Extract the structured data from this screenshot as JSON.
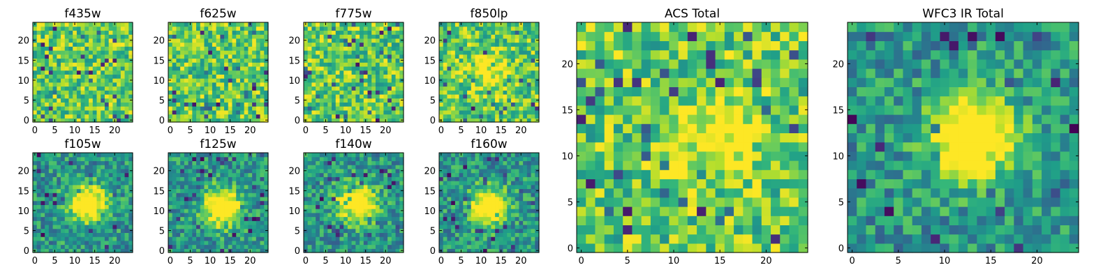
{
  "figure": {
    "panels": [
      {
        "title": "f435w",
        "x_ticks": [
          "0",
          "5",
          "10",
          "15",
          "20"
        ],
        "y_ticks": [
          "0",
          "5",
          "10",
          "15",
          "20"
        ]
      },
      {
        "title": "f625w",
        "x_ticks": [
          "0",
          "5",
          "10",
          "15",
          "20"
        ],
        "y_ticks": [
          "0",
          "5",
          "10",
          "15",
          "20"
        ]
      },
      {
        "title": "f775w",
        "x_ticks": [
          "0",
          "5",
          "10",
          "15",
          "20"
        ],
        "y_ticks": [
          "0",
          "5",
          "10",
          "15",
          "20"
        ]
      },
      {
        "title": "f850lp",
        "x_ticks": [
          "0",
          "5",
          "10",
          "15",
          "20"
        ],
        "y_ticks": [
          "0",
          "5",
          "10",
          "15",
          "20"
        ]
      },
      {
        "title": "f105w",
        "x_ticks": [
          "0",
          "5",
          "10",
          "15",
          "20"
        ],
        "y_ticks": [
          "0",
          "5",
          "10",
          "15",
          "20"
        ]
      },
      {
        "title": "f125w",
        "x_ticks": [
          "0",
          "5",
          "10",
          "15",
          "20"
        ],
        "y_ticks": [
          "0",
          "5",
          "10",
          "15",
          "20"
        ]
      },
      {
        "title": "f140w",
        "x_ticks": [
          "0",
          "5",
          "10",
          "15",
          "20"
        ],
        "y_ticks": [
          "0",
          "5",
          "10",
          "15",
          "20"
        ]
      },
      {
        "title": "f160w",
        "x_ticks": [
          "0",
          "5",
          "10",
          "15",
          "20"
        ],
        "y_ticks": [
          "0",
          "5",
          "10",
          "15",
          "20"
        ]
      },
      {
        "title": "ACS Total",
        "x_ticks": [
          "0",
          "5",
          "10",
          "15",
          "20"
        ],
        "y_ticks": [
          "0",
          "5",
          "10",
          "15",
          "20"
        ]
      },
      {
        "title": "WFC3 IR Total",
        "x_ticks": [
          "0",
          "5",
          "10",
          "15",
          "20"
        ],
        "y_ticks": [
          "0",
          "5",
          "10",
          "15",
          "20"
        ]
      }
    ]
  },
  "colormap": "viridis",
  "chart_data": [
    {
      "type": "heatmap",
      "title": "f435w",
      "grid_size": 25,
      "xlim": [
        -0.5,
        24.5
      ],
      "ylim": [
        -0.5,
        24.5
      ],
      "pattern": "noise",
      "source": null
    },
    {
      "type": "heatmap",
      "title": "f625w",
      "grid_size": 25,
      "xlim": [
        -0.5,
        24.5
      ],
      "ylim": [
        -0.5,
        24.5
      ],
      "pattern": "noise",
      "source": null
    },
    {
      "type": "heatmap",
      "title": "f775w",
      "grid_size": 25,
      "xlim": [
        -0.5,
        24.5
      ],
      "ylim": [
        -0.5,
        24.5
      ],
      "pattern": "noise",
      "source": null
    },
    {
      "type": "heatmap",
      "title": "f850lp",
      "grid_size": 25,
      "xlim": [
        -0.5,
        24.5
      ],
      "ylim": [
        -0.5,
        24.5
      ],
      "pattern": "noise",
      "source": {
        "x": 12,
        "y": 12,
        "peak": 0.3
      }
    },
    {
      "type": "heatmap",
      "title": "f105w",
      "grid_size": 25,
      "xlim": [
        -0.5,
        24.5
      ],
      "ylim": [
        -0.5,
        24.5
      ],
      "pattern": "source",
      "source": {
        "x": 13,
        "y": 12,
        "peak": 0.8
      }
    },
    {
      "type": "heatmap",
      "title": "f125w",
      "grid_size": 25,
      "xlim": [
        -0.5,
        24.5
      ],
      "ylim": [
        -0.5,
        24.5
      ],
      "pattern": "source",
      "source": {
        "x": 13,
        "y": 11,
        "peak": 0.8
      }
    },
    {
      "type": "heatmap",
      "title": "f140w",
      "grid_size": 25,
      "xlim": [
        -0.5,
        24.5
      ],
      "ylim": [
        -0.5,
        24.5
      ],
      "pattern": "source",
      "source": {
        "x": 13,
        "y": 12,
        "peak": 0.8
      }
    },
    {
      "type": "heatmap",
      "title": "f160w",
      "grid_size": 25,
      "xlim": [
        -0.5,
        24.5
      ],
      "ylim": [
        -0.5,
        24.5
      ],
      "pattern": "source",
      "source": {
        "x": 12,
        "y": 11,
        "peak": 0.8
      }
    },
    {
      "type": "heatmap",
      "title": "ACS Total",
      "grid_size": 25,
      "xlim": [
        -0.5,
        24.5
      ],
      "ylim": [
        -0.5,
        24.5
      ],
      "pattern": "noise",
      "source": {
        "x": 14,
        "y": 12,
        "peak": 0.3
      }
    },
    {
      "type": "heatmap",
      "title": "WFC3 IR Total",
      "grid_size": 25,
      "xlim": [
        -0.5,
        24.5
      ],
      "ylim": [
        -0.5,
        24.5
      ],
      "pattern": "source",
      "source": {
        "x": 13,
        "y": 12,
        "peak": 0.9
      }
    }
  ]
}
